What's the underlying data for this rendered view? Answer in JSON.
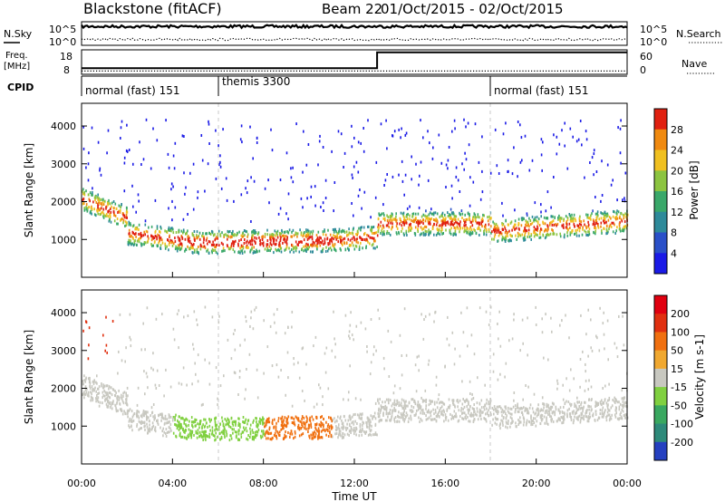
{
  "header": {
    "station": "Blackstone (fitACF)",
    "beam": "Beam 22",
    "date_range": "01/Oct/2015 - 02/Oct/2015"
  },
  "chart_data": [
    {
      "type": "line",
      "panel": "noise",
      "left_label": "N.Sky",
      "right_label": "N.Search",
      "ticks": [
        "10^5",
        "10^0"
      ],
      "series": [
        {
          "name": "N.Sky",
          "style": "solid",
          "level": 0.8
        },
        {
          "name": "N.Search",
          "style": "dotted",
          "level": 0.25
        }
      ]
    },
    {
      "type": "line",
      "panel": "frequency",
      "left_label_1": "Freq.",
      "left_label_2": "[MHz]",
      "right_label": "Nave",
      "left_ticks": [
        "18",
        "8"
      ],
      "right_ticks": [
        "60",
        "0"
      ],
      "series": [
        {
          "name": "Freq.",
          "style": "solid",
          "x_hours": [
            0,
            13,
            13,
            24
          ],
          "values": [
            10.5,
            10.5,
            17,
            17
          ]
        },
        {
          "name": "Nave",
          "style": "dotted",
          "x_hours": [
            0,
            24
          ],
          "values": [
            8,
            8
          ]
        }
      ]
    },
    {
      "type": "table",
      "panel": "cpid",
      "label": "CPID",
      "segments": [
        {
          "text": "normal (fast) 151",
          "start_hour": 0
        },
        {
          "text": "themis 3300",
          "start_hour": 6
        },
        {
          "text": "normal (fast) 151",
          "start_hour": 18
        }
      ]
    },
    {
      "type": "heatmap",
      "panel": "power",
      "ylabel": "Slant Range [km]",
      "yticks": [
        1000,
        2000,
        3000,
        4000
      ],
      "ylim": [
        0,
        4600
      ],
      "xlim_hours": [
        0,
        24
      ],
      "colorbar_label": "Power [dB]",
      "colorbar_ticks": [
        4,
        8,
        12,
        16,
        20,
        24,
        28
      ],
      "colorbar_range": [
        0,
        32
      ],
      "colors": [
        "#1a1ae6",
        "#2a50c8",
        "#2e8a9a",
        "#3aa86a",
        "#8cc440",
        "#f0c020",
        "#f08a10",
        "#e02010"
      ]
    },
    {
      "type": "heatmap",
      "panel": "velocity",
      "ylabel": "Slant Range [km]",
      "yticks": [
        1000,
        2000,
        3000,
        4000
      ],
      "ylim": [
        0,
        4600
      ],
      "xlim_hours": [
        0,
        24
      ],
      "colorbar_label": "Velocity [m s-1]",
      "colorbar_ticks": [
        "200",
        "100",
        "50",
        "15",
        "-15",
        "-50",
        "-100",
        "-200"
      ],
      "colors": [
        "#2540c0",
        "#2e8a7a",
        "#3aa860",
        "#80d040",
        "#c8c8c0",
        "#f0a830",
        "#f07010",
        "#e03010",
        "#e00010"
      ]
    }
  ],
  "x_axis": {
    "label": "Time UT",
    "ticks": [
      "00:00",
      "04:00",
      "08:00",
      "12:00",
      "16:00",
      "20:00",
      "00:00"
    ]
  }
}
